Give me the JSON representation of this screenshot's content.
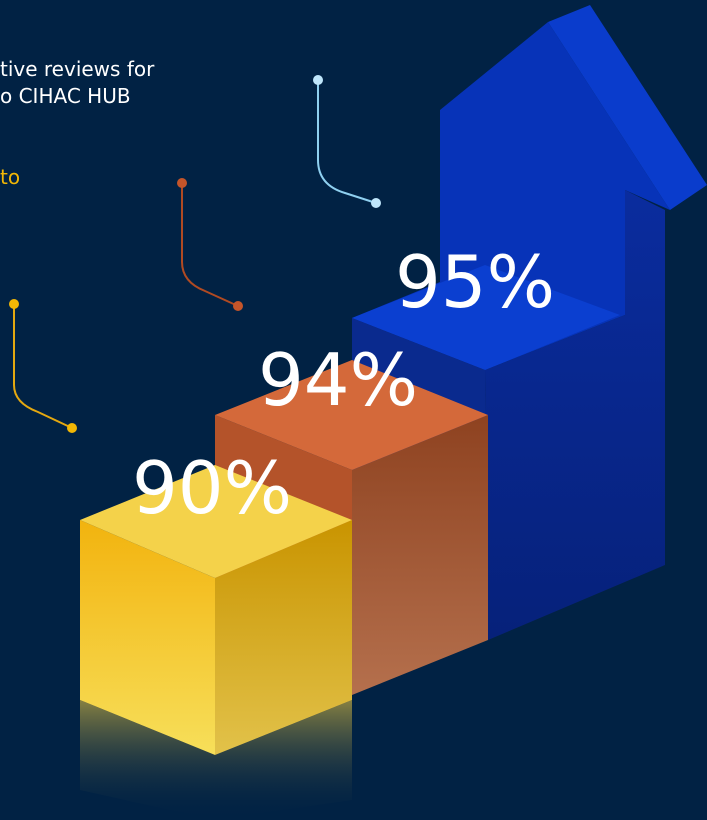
{
  "intro": {
    "lines": [
      "tive reviews for",
      "o CIHAC HUB"
    ],
    "highlight": "to"
  },
  "steps": [
    {
      "label": "90%"
    },
    {
      "label": "94%"
    },
    {
      "label": "95%"
    }
  ]
}
